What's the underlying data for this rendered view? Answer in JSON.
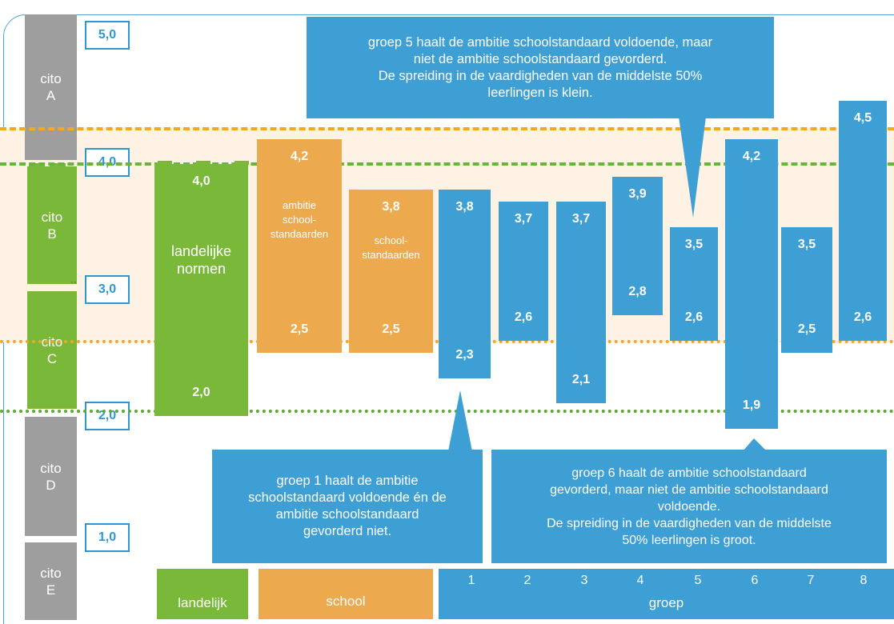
{
  "chart_data": {
    "type": "bar",
    "ylim": [
      0.5,
      5.0
    ],
    "y_ticks": [
      "5,0",
      "4,0",
      "3,0",
      "2,0",
      "1,0"
    ],
    "cito_levels": [
      {
        "name": "cito",
        "letter": "A",
        "from": 4.2,
        "to": 5.2
      },
      {
        "name": "cito",
        "letter": "B",
        "from": 3.0,
        "to": 4.0
      },
      {
        "name": "cito",
        "letter": "C",
        "from": 2.0,
        "to": 3.0
      },
      {
        "name": "cito",
        "letter": "D",
        "from": 1.0,
        "to": 2.0
      },
      {
        "name": "cito",
        "letter": "E",
        "from": 0.5,
        "to": 0.98
      }
    ],
    "reference_lines": [
      {
        "value": 4.2,
        "style": "dashed",
        "color": "#f5a623"
      },
      {
        "value": 4.0,
        "style": "dashed",
        "color": "#6ab33e"
      },
      {
        "value": 2.5,
        "style": "dotted",
        "color": "#f5a623"
      },
      {
        "value": 2.0,
        "style": "dotted",
        "color": "#5aa832"
      }
    ],
    "bars": [
      {
        "kind": "landelijk",
        "low": 2.0,
        "high": 4.0,
        "low_label": "2,0",
        "high_label": "4,0",
        "inner_label": "landelijke\nnormen",
        "color": "#7ab83a"
      },
      {
        "kind": "school",
        "low": 2.5,
        "high": 4.2,
        "low_label": "2,5",
        "high_label": "4,2",
        "inner_label": "ambitie\nschool-\nstandaarden",
        "color": "#eda94e"
      },
      {
        "kind": "school",
        "low": 2.5,
        "high": 3.8,
        "low_label": "2,5",
        "high_label": "3,8",
        "inner_label": "school-\nstandaarden",
        "color": "#eda94e"
      },
      {
        "kind": "groep",
        "group": "1",
        "low": 2.3,
        "high": 3.8,
        "low_label": "2,3",
        "high_label": "3,8",
        "color": "#3d9fd3"
      },
      {
        "kind": "groep",
        "group": "2",
        "low": 2.6,
        "high": 3.7,
        "low_label": "2,6",
        "high_label": "3,7",
        "color": "#3d9fd3"
      },
      {
        "kind": "groep",
        "group": "3",
        "low": 2.1,
        "high": 3.7,
        "low_label": "2,1",
        "high_label": "3,7",
        "color": "#3d9fd3"
      },
      {
        "kind": "groep",
        "group": "4",
        "low": 2.8,
        "high": 3.9,
        "low_label": "2,8",
        "high_label": "3,9",
        "color": "#3d9fd3"
      },
      {
        "kind": "groep",
        "group": "5",
        "low": 2.6,
        "high": 3.5,
        "low_label": "2,6",
        "high_label": "3,5",
        "color": "#3d9fd3"
      },
      {
        "kind": "groep",
        "group": "6",
        "low": 1.9,
        "high": 4.2,
        "low_label": "1,9",
        "high_label": "4,2",
        "color": "#3d9fd3"
      },
      {
        "kind": "groep",
        "group": "7",
        "low": 2.5,
        "high": 3.5,
        "low_label": "2,5",
        "high_label": "3,5",
        "color": "#3d9fd3"
      },
      {
        "kind": "groep",
        "group": "8",
        "low": 2.6,
        "high": 4.5,
        "low_label": "2,6",
        "high_label": "4,5",
        "color": "#3d9fd3"
      }
    ],
    "categories": {
      "landelijk": "landelijk",
      "school": "school",
      "groep": "groep",
      "groep_numbers": [
        "1",
        "2",
        "3",
        "4",
        "5",
        "6",
        "7",
        "8"
      ]
    },
    "annotations": [
      {
        "text": "groep 5 haalt de ambitie schoolstandaard voldoende, maar\nniet de ambitie schoolstandaard gevorderd.\nDe spreiding in de vaardigheden van de middelste 50%\nleerlingen is klein.",
        "points_to_group": "5"
      },
      {
        "text": "groep 1 haalt  de ambitie\nschoolstandaard voldoende én de\nambitie schoolstandaard\ngevorderd niet.",
        "points_to_group": "1"
      },
      {
        "text": "groep 6 haalt de ambitie schoolstandaard\ngevorderd, maar niet de ambitie schoolstandaard\nvoldoende.\nDe spreiding in de vaardigheden van de middelste\n50% leerlingen is groot.",
        "points_to_group": "6"
      }
    ],
    "stray_mark": "``",
    "colors": {
      "groep": "#3d9fd3",
      "school": "#eda94e",
      "landelijk": "#7ab83a",
      "cito_grey": "#9e9e9e",
      "cito_green": "#7ab83a",
      "axis_blue": "#2f97d0",
      "band": "#fdf2e4"
    }
  }
}
